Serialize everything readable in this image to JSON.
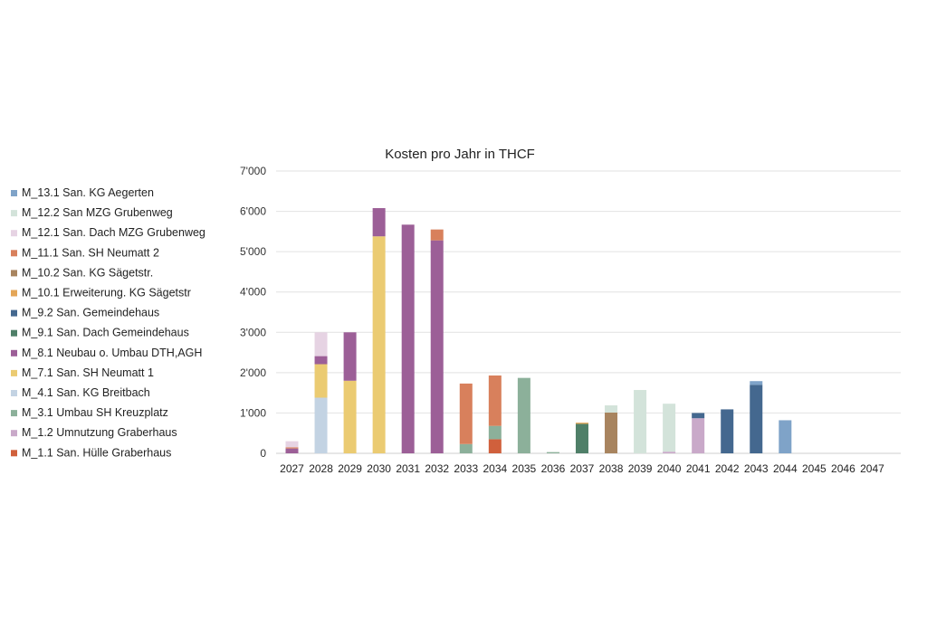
{
  "chart_data": {
    "type": "bar",
    "stacked": true,
    "title": "Kosten pro Jahr in THCF",
    "xlabel": "",
    "ylabel": "",
    "ylim": [
      0,
      7000
    ],
    "yticks": [
      0,
      1000,
      2000,
      3000,
      4000,
      5000,
      6000,
      7000
    ],
    "ytick_labels": [
      "0",
      "1'000",
      "2'000",
      "3'000",
      "4'000",
      "5'000",
      "6'000",
      "7'000"
    ],
    "grid": true,
    "legend_position": "left",
    "categories": [
      "2027",
      "2028",
      "2029",
      "2030",
      "2031",
      "2032",
      "2033",
      "2034",
      "2035",
      "2036",
      "2037",
      "2038",
      "2039",
      "2040",
      "2041",
      "2042",
      "2043",
      "2044",
      "2045",
      "2046",
      "2047"
    ],
    "series": [
      {
        "name": "M_1.1 San. Hülle Graberhaus",
        "color": "#d0603c",
        "values": [
          0,
          0,
          0,
          0,
          0,
          0,
          0,
          350,
          0,
          0,
          0,
          0,
          0,
          0,
          0,
          0,
          0,
          0,
          0,
          0,
          0
        ]
      },
      {
        "name": "M_1.2 Umnutzung Graberhaus",
        "color": "#c9a9c9",
        "values": [
          0,
          0,
          0,
          0,
          0,
          0,
          0,
          0,
          0,
          0,
          0,
          0,
          0,
          40,
          870,
          0,
          0,
          0,
          0,
          0,
          0
        ]
      },
      {
        "name": "M_3.1 Umbau SH Kreuzplatz",
        "color": "#8cb09a",
        "values": [
          0,
          0,
          0,
          0,
          0,
          0,
          230,
          330,
          1870,
          30,
          0,
          0,
          0,
          0,
          0,
          0,
          0,
          0,
          0,
          0,
          0
        ]
      },
      {
        "name": "M_4.1 San. KG Breitbach",
        "color": "#c3d3e3",
        "values": [
          0,
          1380,
          0,
          0,
          0,
          0,
          0,
          0,
          0,
          0,
          0,
          0,
          0,
          0,
          0,
          0,
          0,
          0,
          0,
          0,
          0
        ]
      },
      {
        "name": "M_7.1 San. SH Neumatt 1",
        "color": "#ebcb72",
        "values": [
          0,
          830,
          1800,
          5380,
          0,
          0,
          0,
          0,
          0,
          0,
          0,
          0,
          0,
          0,
          0,
          0,
          0,
          0,
          0,
          0,
          0
        ]
      },
      {
        "name": "M_8.1 Neubau o. Umbau DTH,AGH",
        "color": "#9c5f97",
        "values": [
          120,
          200,
          1200,
          700,
          5670,
          5280,
          0,
          0,
          0,
          0,
          0,
          0,
          0,
          0,
          0,
          0,
          0,
          0,
          0,
          0,
          0
        ]
      },
      {
        "name": "M_9.1 San. Dach Gemeindehaus",
        "color": "#4f7f68",
        "values": [
          0,
          0,
          0,
          0,
          0,
          0,
          0,
          0,
          0,
          0,
          730,
          0,
          0,
          0,
          0,
          0,
          0,
          0,
          0,
          0,
          0
        ]
      },
      {
        "name": "M_9.2 San. Gemeindehaus",
        "color": "#44688f",
        "values": [
          0,
          0,
          0,
          0,
          0,
          0,
          0,
          0,
          0,
          0,
          0,
          0,
          0,
          0,
          130,
          1090,
          1700,
          0,
          0,
          0,
          0
        ]
      },
      {
        "name": "M_10.1 Erweiterung. KG Sägetstr",
        "color": "#e4a658",
        "values": [
          0,
          0,
          0,
          0,
          0,
          0,
          0,
          0,
          0,
          0,
          30,
          0,
          0,
          0,
          0,
          0,
          0,
          0,
          0,
          0,
          0
        ]
      },
      {
        "name": "M_10.2 San. KG Sägetstr.",
        "color": "#a8845f",
        "values": [
          0,
          0,
          0,
          0,
          0,
          0,
          0,
          0,
          0,
          0,
          0,
          1010,
          0,
          0,
          0,
          0,
          0,
          0,
          0,
          0,
          0
        ]
      },
      {
        "name": "M_11.1 San. SH Neumatt 2",
        "color": "#d8805c",
        "values": [
          30,
          0,
          0,
          0,
          0,
          270,
          1500,
          1250,
          0,
          0,
          0,
          0,
          0,
          0,
          0,
          0,
          0,
          0,
          0,
          0,
          0
        ]
      },
      {
        "name": "M_12.1 San. Dach MZG Grubenweg",
        "color": "#e6d3e3",
        "values": [
          150,
          590,
          0,
          0,
          0,
          0,
          0,
          0,
          0,
          0,
          0,
          0,
          0,
          0,
          0,
          0,
          0,
          0,
          0,
          0,
          0
        ]
      },
      {
        "name": "M_12.2 San MZG Grubenweg",
        "color": "#d3e3da",
        "values": [
          0,
          0,
          0,
          0,
          0,
          0,
          0,
          0,
          0,
          0,
          0,
          180,
          1570,
          1190,
          0,
          0,
          0,
          0,
          0,
          0,
          0
        ]
      },
      {
        "name": "M_13.1 San. KG Aegerten",
        "color": "#7fa3c8",
        "values": [
          0,
          0,
          0,
          0,
          0,
          0,
          0,
          0,
          0,
          0,
          0,
          0,
          0,
          0,
          0,
          0,
          90,
          820,
          0,
          0,
          0
        ]
      }
    ]
  }
}
